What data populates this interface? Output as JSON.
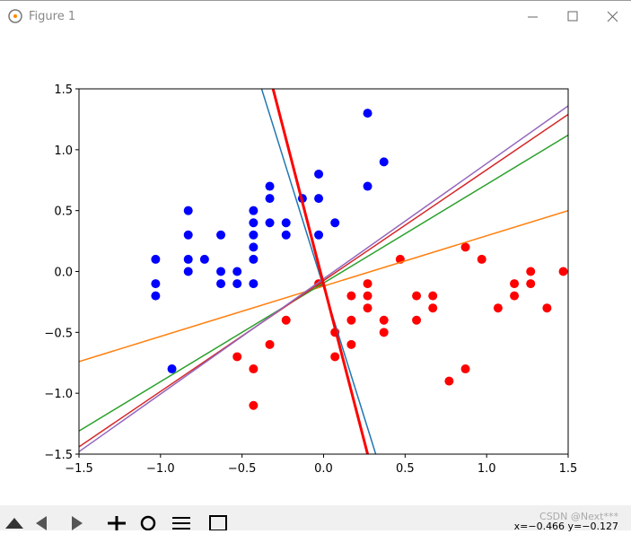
{
  "window": {
    "title": "Figure 1",
    "status": "x=−0.466 y=−0.127",
    "watermark": "CSDN @Next***"
  },
  "chart_data": {
    "type": "scatter",
    "xlim": [
      -1.5,
      1.5
    ],
    "ylim": [
      -1.5,
      1.5
    ],
    "xticks": [
      {
        "value": -1.5,
        "label": "−1.5"
      },
      {
        "value": -1.0,
        "label": "−1.0"
      },
      {
        "value": -0.5,
        "label": "−0.5"
      },
      {
        "value": 0,
        "label": "0.0"
      },
      0.5,
      {
        "value": 1,
        "label": "1.0"
      },
      1.5
    ],
    "yticks": [
      {
        "value": -1.5,
        "label": "−1.5"
      },
      {
        "value": -1.0,
        "label": "−1.0"
      },
      {
        "value": -0.5,
        "label": "−0.5"
      },
      {
        "value": 0,
        "label": "0.0"
      },
      0.5,
      {
        "value": 1,
        "label": "1.0"
      },
      1.5
    ],
    "series": [
      {
        "color": "#0000ff",
        "x": [
          -1.03,
          -1.03,
          -1.03,
          -0.83,
          -0.83,
          -0.83,
          -0.83,
          -0.73,
          -0.63,
          -0.63,
          -0.63,
          -0.53,
          -0.53,
          -0.43,
          -0.43,
          -0.43,
          -0.43,
          -0.43,
          -0.43,
          -0.33,
          -0.33,
          -0.33,
          -0.23,
          -0.23,
          -0.13,
          -0.03,
          -0.03,
          -0.03,
          0.07,
          0.27,
          0.27,
          0.37,
          -0.93
        ],
        "values": [
          0.1,
          -0.1,
          -0.2,
          0.5,
          0.3,
          0.1,
          0,
          0.1,
          0.3,
          0,
          -0.1,
          0,
          -0.1,
          0.5,
          0.4,
          0.3,
          0.2,
          0.1,
          -0.1,
          0.7,
          0.6,
          0.4,
          0.4,
          0.3,
          0.6,
          0.8,
          0.6,
          0.3,
          0.4,
          1.3,
          0.7,
          0.9,
          -0.8
        ]
      },
      {
        "color": "#ff0000",
        "x": [
          -0.53,
          -0.43,
          -0.43,
          -0.33,
          -0.23,
          -0.03,
          0.07,
          0.07,
          0.17,
          0.17,
          0.17,
          0.27,
          0.27,
          0.27,
          0.37,
          0.37,
          0.47,
          0.57,
          0.57,
          0.67,
          0.67,
          0.77,
          0.87,
          0.87,
          0.97,
          1.07,
          1.17,
          1.17,
          1.27,
          1.27,
          1.37,
          1.47
        ],
        "values": [
          -0.7,
          -0.8,
          -1.1,
          -0.6,
          -0.4,
          -0.1,
          -0.5,
          -0.7,
          -0.2,
          -0.4,
          -0.6,
          -0.1,
          -0.2,
          -0.3,
          -0.4,
          -0.5,
          0.1,
          -0.2,
          -0.4,
          -0.2,
          -0.3,
          -0.9,
          0.2,
          -0.8,
          0.1,
          -0.3,
          -0.1,
          -0.2,
          0,
          -0.1,
          -0.3,
          0
        ]
      }
    ],
    "lines": [
      {
        "color": "#ff7f0e",
        "x": [
          -1.5,
          1.5
        ],
        "values": [
          -0.74,
          0.5
        ]
      },
      {
        "color": "#2ca02c",
        "x": [
          -1.5,
          1.5
        ],
        "values": [
          -1.31,
          1.12
        ]
      },
      {
        "color": "#d62728",
        "x": [
          -1.5,
          1.5
        ],
        "values": [
          -1.44,
          1.29
        ]
      },
      {
        "color": "#9467bd",
        "x": [
          -1.5,
          1.5
        ],
        "values": [
          -1.48,
          1.36
        ]
      },
      {
        "color": "#1f77b4",
        "x": [
          -0.38,
          0.32
        ],
        "values": [
          1.5,
          -1.5
        ]
      },
      {
        "color": "#ff0000",
        "width": 3,
        "x": [
          -0.31,
          0.27
        ],
        "values": [
          1.5,
          -1.5
        ]
      }
    ]
  }
}
